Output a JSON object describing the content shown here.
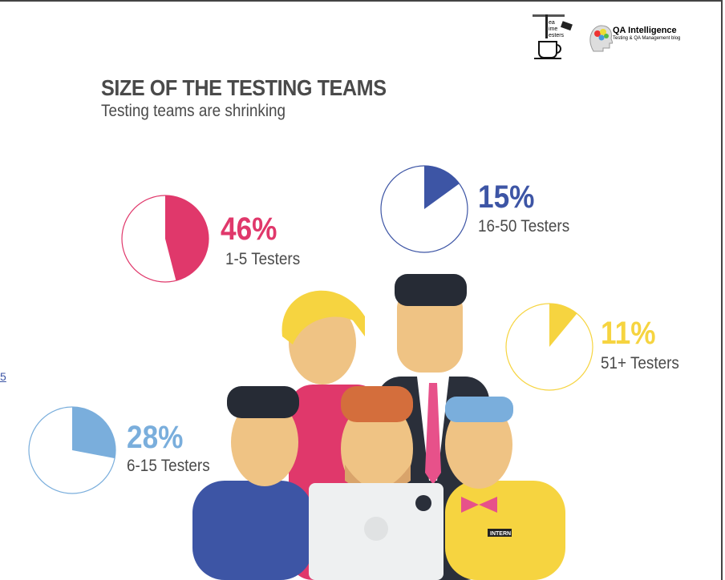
{
  "header": {
    "title": "SIZE OF THE TESTING TEAMS",
    "subtitle": "Testing teams are shrinking"
  },
  "logos": {
    "tea_time_testers": "Tea Time Testers",
    "qa_intelligence": "QA Intelligence",
    "qa_tagline": "Testing & QA Management blog"
  },
  "edge_text": "5",
  "laptop_badge": "INTERN",
  "chart_data": [
    {
      "type": "pie",
      "value": 46,
      "label": "46%",
      "category": "1-5 Testers",
      "color": "#e0386b"
    },
    {
      "type": "pie",
      "value": 15,
      "label": "15%",
      "category": "16-50 Testers",
      "color": "#3d55a5"
    },
    {
      "type": "pie",
      "value": 11,
      "label": "11%",
      "category": "51+ Testers",
      "color": "#f6d440"
    },
    {
      "type": "pie",
      "value": 28,
      "label": "28%",
      "category": "6-15 Testers",
      "color": "#7aaedc"
    }
  ]
}
